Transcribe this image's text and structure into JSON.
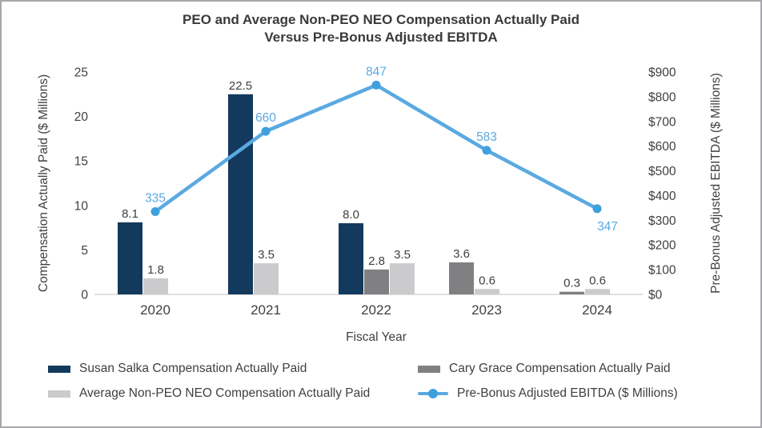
{
  "window": {
    "background": "#ffffff",
    "border_color": "#a7a7ac"
  },
  "chart_data": {
    "type": "combo-bar-line",
    "title_line1": "PEO and Average Non-PEO NEO Compensation Actually Paid",
    "title_line2": "Versus Pre-Bonus Adjusted EBITDA",
    "categories": [
      "2020",
      "2021",
      "2022",
      "2023",
      "2024"
    ],
    "xlabel": "Fiscal Year",
    "grid": "off",
    "legend_position": "bottom",
    "left_axis": {
      "label": "Compensation Actually Paid ($ Millions)",
      "range": [
        0,
        25
      ],
      "tick_step": 5,
      "ticks": [
        "0",
        "5",
        "10",
        "15",
        "20",
        "25"
      ]
    },
    "right_axis": {
      "label": "Pre-Bonus Adjusted EBITDA ($ Millions)",
      "range": [
        0,
        900
      ],
      "tick_step": 100,
      "ticks": [
        "$0",
        "$100",
        "$200",
        "$300",
        "$400",
        "$500",
        "$600",
        "$700",
        "$800",
        "$900"
      ]
    },
    "bar_series": [
      {
        "name": "Susan Salka Compensation Actually Paid",
        "color": "#133a5c",
        "values": [
          8.1,
          22.5,
          8.0,
          null,
          null
        ],
        "value_labels": [
          "8.1",
          "22.5",
          "8.0",
          null,
          null
        ]
      },
      {
        "name": "Cary Grace Compensation Actually Paid",
        "color": "#808083",
        "values": [
          null,
          null,
          2.8,
          3.6,
          0.3
        ],
        "value_labels": [
          null,
          null,
          "2.8",
          "3.6",
          "0.3"
        ]
      },
      {
        "name": "Average Non-PEO NEO Compensation Actually Paid",
        "color": "#cbcbcd",
        "values": [
          1.8,
          3.5,
          3.5,
          0.6,
          0.6
        ],
        "value_labels": [
          "1.8",
          "3.5",
          "3.5",
          "0.6",
          "0.6"
        ]
      }
    ],
    "line_series": {
      "name": "Pre-Bonus Adjusted EBITDA ($ Millions)",
      "color": "#5aa9e2",
      "marker_color": "#3fa0de",
      "values": [
        335,
        660,
        847,
        583,
        347
      ],
      "value_labels": [
        "335",
        "660",
        "847",
        "583",
        "347"
      ],
      "label_placement": [
        "above",
        "above",
        "above",
        "above",
        "below"
      ]
    },
    "text_color": "#404040",
    "axis_line_color": "#d6d6d6"
  }
}
